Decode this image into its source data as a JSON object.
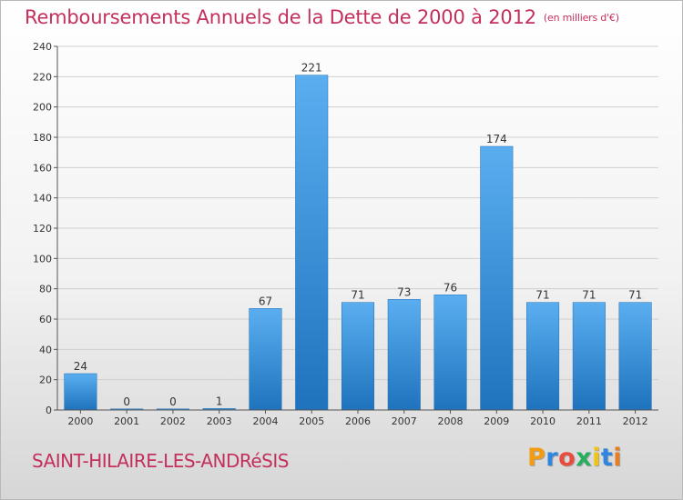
{
  "chart_data": {
    "type": "bar",
    "title": "Remboursements Annuels de la Dette de 2000 à 2012",
    "subtitle": "(en milliers d'€)",
    "categories": [
      "2000",
      "2001",
      "2002",
      "2003",
      "2004",
      "2005",
      "2006",
      "2007",
      "2008",
      "2009",
      "2010",
      "2011",
      "2012"
    ],
    "values": [
      24,
      0,
      0,
      1,
      67,
      221,
      71,
      73,
      76,
      174,
      71,
      71,
      71
    ],
    "data_labels": [
      "24",
      "0",
      "0",
      "1",
      "67",
      "221",
      "71",
      "73",
      "76",
      "174",
      "71",
      "71",
      "71"
    ],
    "ylim": [
      0,
      240
    ],
    "yticks": [
      "0",
      "20",
      "40",
      "60",
      "80",
      "100",
      "120",
      "140",
      "160",
      "180",
      "200",
      "220",
      "240"
    ],
    "grid": true,
    "bar_color": "#3a8fd8",
    "xlabel": "",
    "ylabel": ""
  },
  "footer": {
    "commune": "SAINT-HILAIRE-LES-ANDRéSIS"
  },
  "logo": {
    "text": "Proxiti",
    "letters": [
      "P",
      "r",
      "o",
      "x",
      "i",
      "t",
      "i"
    ],
    "letter_colors": [
      "#f39c12",
      "#2e86de",
      "#e74c3c",
      "#27ae60",
      "#f1c40f",
      "#2e86de",
      "#e67e22"
    ]
  },
  "colors": {
    "title": "#c4305c",
    "bar_light": "#5aaef0",
    "bar_dark": "#1f73bd",
    "grid": "#cfcfcf",
    "axis": "#555555"
  }
}
